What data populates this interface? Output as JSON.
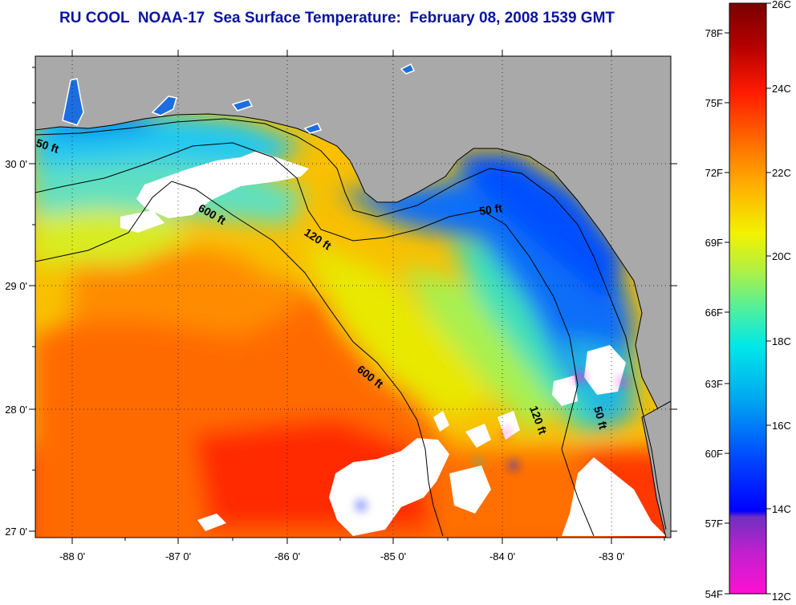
{
  "title": "RU COOL  NOAA-17  Sea Surface Temperature:  February 08, 2008 1539 GMT",
  "map": {
    "x_ticks": [
      {
        "lon": -88,
        "label": "-88 0'"
      },
      {
        "lon": -87,
        "label": "-87 0'"
      },
      {
        "lon": -86,
        "label": "-86 0'"
      },
      {
        "lon": -85,
        "label": "-85 0'"
      },
      {
        "lon": -84,
        "label": "-84 0'"
      },
      {
        "lon": -83,
        "label": "-83 0'"
      }
    ],
    "y_ticks": [
      {
        "lat": 30,
        "label": "30 0'"
      },
      {
        "lat": 29,
        "label": "29 0'"
      },
      {
        "lat": 28,
        "label": "28 0'"
      },
      {
        "lat": 27,
        "label": "27 0'"
      }
    ],
    "lon_range": [
      -88.35,
      -82.55
    ],
    "lat_range": [
      26.95,
      30.9
    ],
    "contour_labels": [
      {
        "text": "50 ft",
        "id": "50ft-west"
      },
      {
        "text": "600 ft",
        "id": "600ft-north"
      },
      {
        "text": "120 ft",
        "id": "120ft-north"
      },
      {
        "text": "50 ft",
        "id": "50ft-big-bend"
      },
      {
        "text": "600 ft",
        "id": "600ft-south"
      },
      {
        "text": "120 ft",
        "id": "120ft-south"
      },
      {
        "text": "50 ft",
        "id": "50ft-south"
      }
    ],
    "colors": {
      "land": "#a9a9a9",
      "cloud": "#ffffff"
    }
  },
  "colorbar": {
    "fahrenheit_labels": [
      "78F",
      "75F",
      "72F",
      "69F",
      "66F",
      "63F",
      "60F",
      "57F",
      "54F"
    ],
    "celsius_labels": [
      "26C",
      "24C",
      "22C",
      "20C",
      "18C",
      "16C",
      "14C",
      "12C"
    ]
  }
}
